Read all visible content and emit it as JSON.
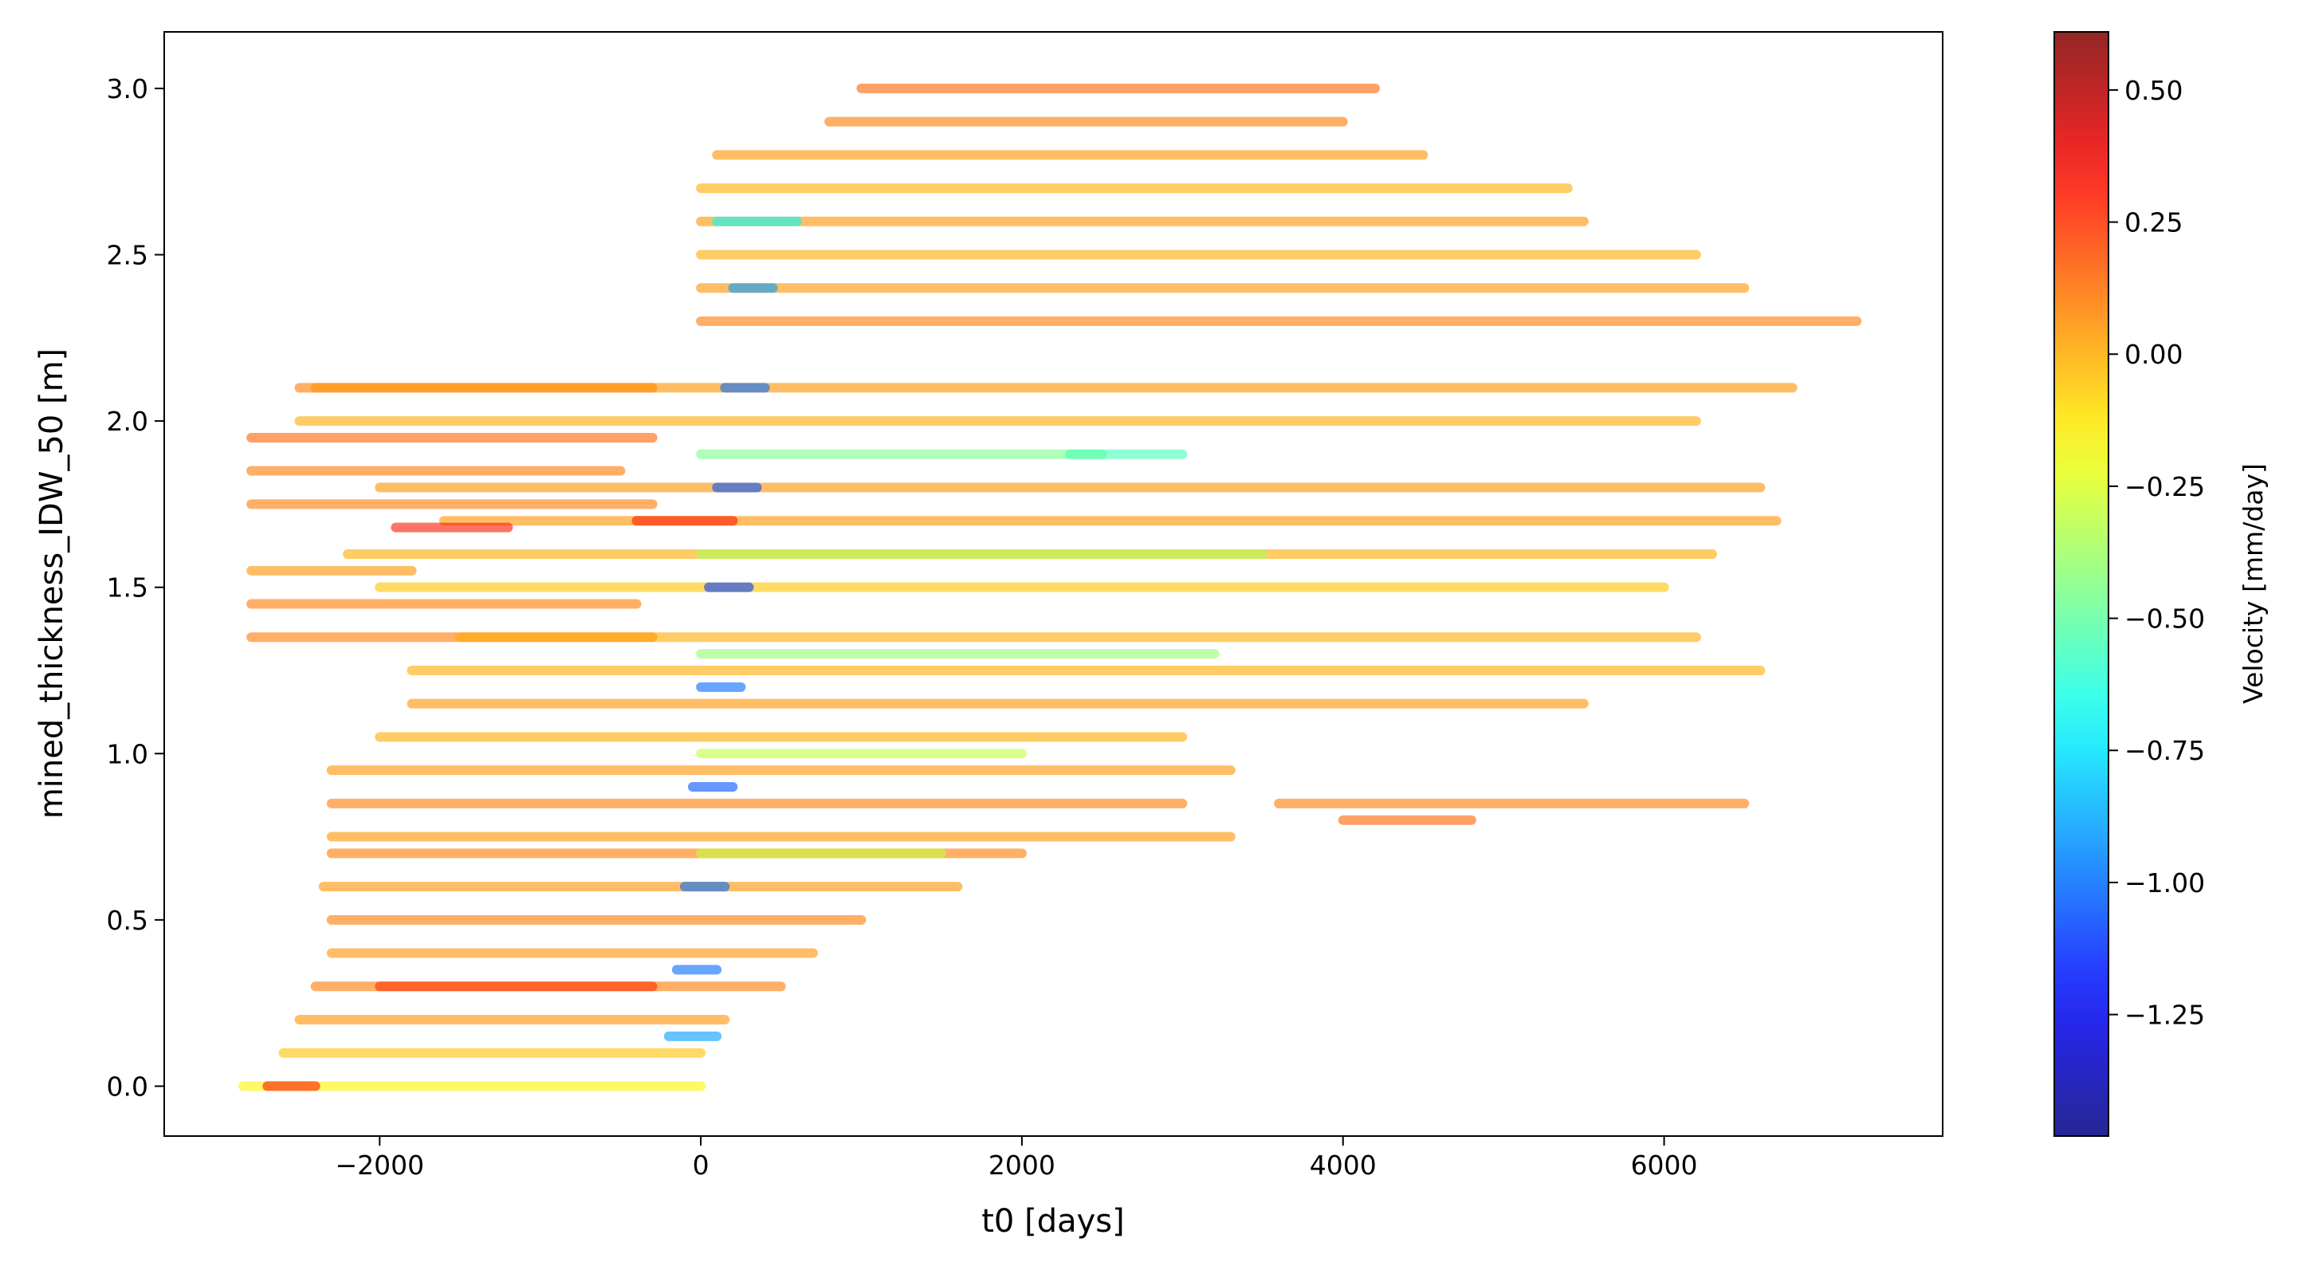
{
  "chart_data": {
    "type": "scatter",
    "xlabel": "t0 [days]",
    "ylabel": "mined_thickness_IDW_50 [m]",
    "colorbar_label": "Velocity [mm/day]",
    "colormap": "jet",
    "xlim": [
      -3342,
      7735
    ],
    "ylim": [
      -0.15,
      3.17
    ],
    "clim": [
      -1.48,
      0.61
    ],
    "xticks": [
      {
        "value": -2000,
        "label": "−2000"
      },
      0,
      2000,
      4000,
      6000
    ],
    "yticks": [
      {
        "value": 0,
        "label": "0.0"
      },
      0.5,
      {
        "value": 1,
        "label": "1.0"
      },
      1.5,
      {
        "value": 2,
        "label": "2.0"
      },
      2.5,
      {
        "value": 3,
        "label": "3.0"
      }
    ],
    "cticks": [
      {
        "value": 0.5,
        "label": "0.50"
      },
      0.25,
      {
        "value": 0,
        "label": "0.00"
      },
      {
        "value": -0.25,
        "label": "−0.25"
      },
      {
        "value": -0.5,
        "label": "−0.50"
      },
      {
        "value": -0.75,
        "label": "−0.75"
      },
      {
        "value": -1,
        "label": "−1.00"
      },
      {
        "value": -1.25,
        "label": "−1.25"
      }
    ],
    "x0": [
      -2850,
      -2700,
      -2600,
      -2500,
      -2400,
      -2300,
      -2300,
      -2350,
      -2300,
      -2300,
      -2300,
      -2300,
      -2000,
      -1800,
      -1800,
      -2800,
      -1500,
      -2800,
      -2000,
      -2800,
      -2200,
      -2800,
      -1600,
      -2800,
      -2000,
      -2800,
      -2500,
      -2500,
      -2400,
      0,
      0,
      0,
      0,
      0,
      100,
      800,
      1000,
      0,
      0,
      0,
      0,
      0,
      3600,
      4000,
      2300,
      -200,
      -150,
      -100,
      -50,
      0,
      50,
      100,
      150,
      200,
      100,
      -400,
      -1900,
      -2000
    ],
    "x1": [
      0,
      -2400,
      0,
      150,
      500,
      700,
      1000,
      1600,
      2000,
      3300,
      3000,
      3300,
      3000,
      5500,
      6600,
      -300,
      6200,
      -400,
      6000,
      -1800,
      6300,
      -300,
      6700,
      -500,
      6600,
      -300,
      6200,
      -300,
      6800,
      7200,
      6500,
      6200,
      5500,
      5400,
      4500,
      4000,
      4200,
      2500,
      3500,
      3200,
      2000,
      1500,
      6500,
      4800,
      3000,
      100,
      100,
      150,
      200,
      250,
      300,
      350,
      400,
      450,
      600,
      200,
      -1200,
      -300
    ],
    "y": [
      0.0,
      0.0,
      0.1,
      0.2,
      0.3,
      0.4,
      0.5,
      0.6,
      0.7,
      0.75,
      0.85,
      0.95,
      1.05,
      1.15,
      1.25,
      1.35,
      1.35,
      1.45,
      1.5,
      1.55,
      1.6,
      1.75,
      1.7,
      1.85,
      1.8,
      1.95,
      2.0,
      2.1,
      2.1,
      2.3,
      2.4,
      2.5,
      2.6,
      2.7,
      2.8,
      2.9,
      3.0,
      1.9,
      1.6,
      1.3,
      1.0,
      0.7,
      0.85,
      0.8,
      1.9,
      0.15,
      0.35,
      0.6,
      0.9,
      1.2,
      1.5,
      1.8,
      2.1,
      2.4,
      2.6,
      1.7,
      1.68,
      0.3
    ],
    "c": [
      -0.15,
      0.3,
      -0.05,
      0.05,
      0.1,
      0.05,
      0.1,
      0.05,
      0.1,
      0.05,
      0.1,
      0.05,
      0.0,
      0.05,
      0.0,
      0.1,
      0.0,
      0.1,
      -0.05,
      0.05,
      0.0,
      0.1,
      0.05,
      0.1,
      0.05,
      0.15,
      0.0,
      0.1,
      0.05,
      0.1,
      0.05,
      0.0,
      0.05,
      0.0,
      0.05,
      0.1,
      0.15,
      -0.45,
      -0.35,
      -0.4,
      -0.3,
      -0.3,
      0.1,
      0.15,
      -0.55,
      -0.9,
      -1.0,
      -1.0,
      -1.05,
      -1.0,
      -1.1,
      -1.05,
      -1.0,
      -0.9,
      -0.7,
      0.3,
      0.3,
      0.25
    ]
  }
}
